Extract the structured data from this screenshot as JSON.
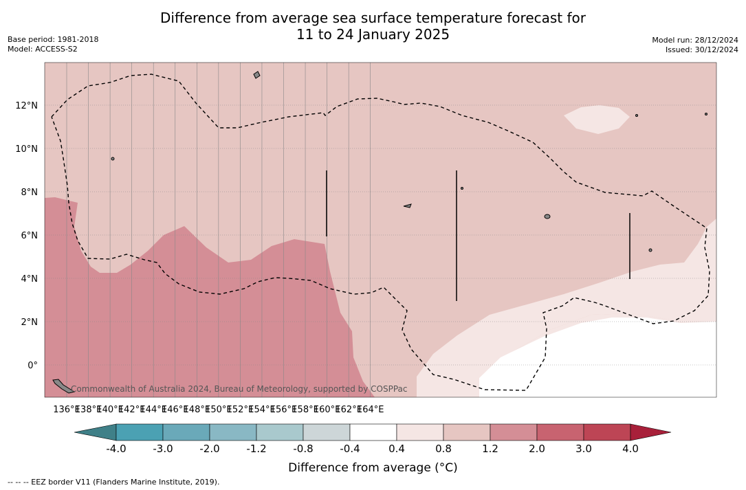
{
  "title": {
    "line1": "Difference from average sea surface temperature forecast for",
    "line2": "11 to 24 January 2025"
  },
  "meta": {
    "base_period": "Base period: 1981-2018",
    "model": "Model: ACCESS-S2",
    "model_run": "Model run: 28/12/2024",
    "issued": "Issued: 30/12/2024"
  },
  "map": {
    "lon_ticks": [
      "136°E",
      "138°E",
      "140°E",
      "142°E",
      "144°E",
      "146°E",
      "148°E",
      "150°E",
      "152°E",
      "154°E",
      "156°E",
      "158°E",
      "160°E",
      "162°E",
      "164°E"
    ],
    "lat_ticks": [
      "12°N",
      "10°N",
      "8°N",
      "6°N",
      "4°N",
      "2°N",
      "0°"
    ],
    "credit": "Commonwealth of Australia 2024, Bureau of Meteorology, supported by COSPPac"
  },
  "colors": {
    "ocean_default": "#e6c6c2",
    "warm_1": "#f5e6e4",
    "warm_2": "#d48e96",
    "neutral": "#ffffff",
    "eez_border": "#000000"
  },
  "legend": {
    "labels": [
      "-4.0",
      "-3.0",
      "-2.0",
      "-1.2",
      "-0.8",
      "-0.4",
      "0.4",
      "0.8",
      "1.2",
      "2.0",
      "3.0",
      "4.0"
    ],
    "colors": [
      "#4ba1b3",
      "#6aa9b9",
      "#89b8c4",
      "#a9c9cd",
      "#cdd6d8",
      "#ffffff",
      "#f5e6e4",
      "#e6c6c2",
      "#d48e96",
      "#c86370",
      "#bd4555"
    ],
    "extend_low_color": "#3f8088",
    "extend_high_color": "#a8203a",
    "title": "Difference from average (°C)"
  },
  "footnote": "--  --  -- EEZ border V11 (Flanders Marine Institute, 2019)."
}
